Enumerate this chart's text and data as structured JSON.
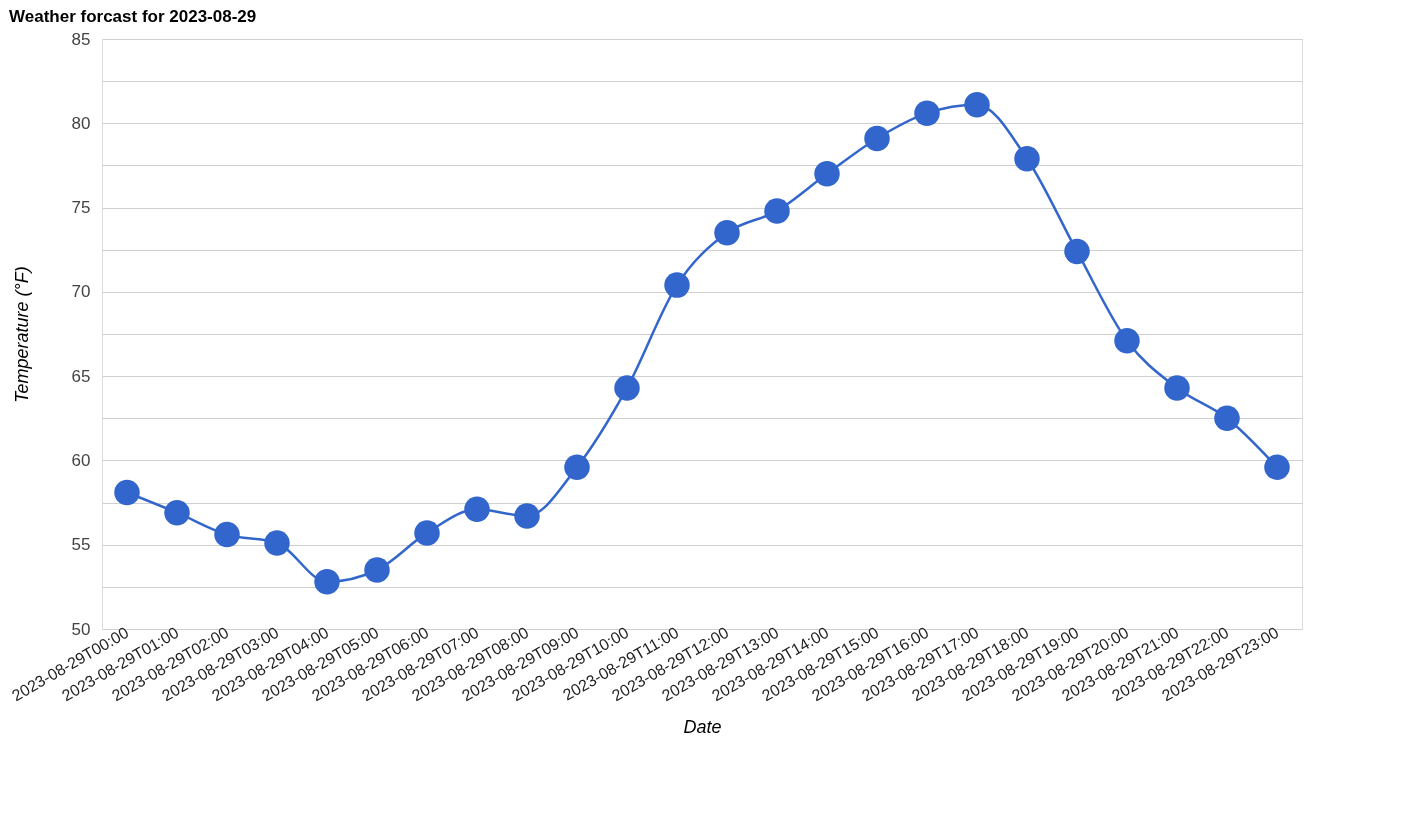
{
  "chart_data": {
    "type": "line",
    "title": "Weather forcast for 2023-08-29",
    "xlabel": "Date",
    "ylabel": "Temperature (°F)",
    "categories": [
      "2023-08-29T00:00",
      "2023-08-29T01:00",
      "2023-08-29T02:00",
      "2023-08-29T03:00",
      "2023-08-29T04:00",
      "2023-08-29T05:00",
      "2023-08-29T06:00",
      "2023-08-29T07:00",
      "2023-08-29T08:00",
      "2023-08-29T09:00",
      "2023-08-29T10:00",
      "2023-08-29T11:00",
      "2023-08-29T12:00",
      "2023-08-29T13:00",
      "2023-08-29T14:00",
      "2023-08-29T15:00",
      "2023-08-29T16:00",
      "2023-08-29T17:00",
      "2023-08-29T18:00",
      "2023-08-29T19:00",
      "2023-08-29T20:00",
      "2023-08-29T21:00",
      "2023-08-29T22:00",
      "2023-08-29T23:00"
    ],
    "series": [
      {
        "color": "#3366cc",
        "values": [
          58.1,
          56.9,
          55.6,
          55.1,
          52.8,
          53.5,
          55.7,
          57.1,
          56.7,
          59.6,
          64.3,
          70.4,
          73.5,
          74.8,
          77.0,
          79.1,
          80.6,
          81.1,
          77.9,
          72.4,
          67.1,
          64.3,
          62.5,
          59.6
        ]
      }
    ],
    "ylim": [
      50,
      85
    ],
    "yticks": [
      50,
      {
        "value": 52.5,
        "label": null
      },
      55,
      {
        "value": 57.5,
        "label": null
      },
      60,
      {
        "value": 62.5,
        "label": null
      },
      65,
      {
        "value": 67.5,
        "label": null
      },
      70,
      {
        "value": 72.5,
        "label": null
      },
      75,
      {
        "value": 77.5,
        "label": null
      },
      80,
      {
        "value": 82.5,
        "label": null
      },
      85
    ],
    "grid": "y",
    "marker": "circle",
    "line_style": "solid"
  }
}
